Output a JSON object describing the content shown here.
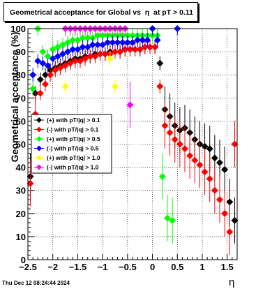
{
  "title": "Geometrical acceptance for Global vs  η  at pT > 0.11",
  "timestamp": "Thu Dec 12 08:24:44 2024",
  "chart_data": {
    "type": "scatter",
    "xlabel": "η",
    "ylabel": "Geometrical acceptance (%)",
    "xlim": [
      -2.5,
      1.7
    ],
    "ylim": [
      0,
      100
    ],
    "grid": true,
    "legend_position": "left-middle",
    "x_ticks": [
      -2.5,
      -2,
      -1.5,
      -1,
      -0.5,
      0,
      0.5,
      1,
      1.5
    ],
    "x_tick_labels": [
      "−2.5",
      "−2",
      "−1.5",
      "−1",
      "−0.5",
      "0",
      "0.5",
      "1",
      "1.5"
    ],
    "y_ticks": [
      0,
      10,
      20,
      30,
      40,
      50,
      60,
      70,
      80,
      90,
      100
    ],
    "y_tick_labels": [
      "0",
      "10",
      "20",
      "30",
      "40",
      "50",
      "60",
      "70",
      "80",
      "90",
      "100"
    ],
    "series": [
      {
        "name": "(+) with pT/|q| > 0.1",
        "color": "#000000",
        "x": [
          -2.45,
          -2.35,
          -2.25,
          -2.15,
          -2.05,
          -1.95,
          -1.85,
          -1.75,
          -1.65,
          -1.55,
          -1.45,
          -1.35,
          -1.25,
          -1.15,
          -1.05,
          -0.95,
          -0.85,
          -0.75,
          -0.65,
          -0.55,
          -0.45,
          -0.35,
          -0.25,
          -0.15,
          -0.05,
          0.05,
          0.15,
          0.25,
          0.35,
          0.45,
          0.55,
          0.65,
          0.75,
          0.85,
          0.95,
          1.05,
          1.15,
          1.25,
          1.35,
          1.45,
          1.55,
          1.65
        ],
        "y": [
          36,
          72,
          78,
          80,
          82,
          83,
          84,
          85,
          86,
          87,
          87,
          88,
          88,
          89,
          89,
          89,
          90,
          90,
          90,
          91,
          91,
          91,
          91,
          92,
          92,
          92,
          85,
          65,
          62,
          58,
          56,
          57,
          55,
          52,
          50,
          49,
          48,
          44,
          42,
          39,
          25,
          17
        ]
      },
      {
        "name": "(-) with pT/|q| > 0.1",
        "color": "#ff0000",
        "x": [
          -2.45,
          -2.35,
          -2.25,
          -2.15,
          -2.05,
          -1.95,
          -1.85,
          -1.75,
          -1.65,
          -1.55,
          -1.45,
          -1.35,
          -1.25,
          -1.15,
          -1.05,
          -0.95,
          -0.85,
          -0.75,
          -0.65,
          -0.55,
          -0.45,
          -0.35,
          -0.25,
          -0.15,
          -0.05,
          0.05,
          0.15,
          0.25,
          0.35,
          0.45,
          0.55,
          0.65,
          0.75,
          0.85,
          0.95,
          1.05,
          1.15,
          1.25,
          1.35,
          1.45,
          1.55,
          1.65
        ],
        "y": [
          33,
          63,
          72,
          76,
          80,
          82,
          83,
          84,
          85,
          86,
          86,
          87,
          88,
          88,
          89,
          89,
          89,
          90,
          90,
          91,
          91,
          91,
          91,
          92,
          92,
          92,
          75,
          58,
          55,
          52,
          50,
          48,
          45,
          43,
          41,
          38,
          35,
          30,
          26,
          20,
          12,
          50
        ]
      },
      {
        "name": "(+) with pT/|q| > 0.5",
        "color": "#00ff00",
        "x": [
          -2.4,
          -2.3,
          -2.2,
          -2.1,
          -2.0,
          -1.9,
          -1.8,
          -1.7,
          -1.6,
          -1.5,
          -1.4,
          -1.3,
          -1.2,
          -1.1,
          -1.0,
          -0.9,
          -0.8,
          -0.7,
          -0.6,
          -0.5,
          -0.4,
          -0.3,
          -0.2,
          -0.1,
          0.0,
          0.1,
          0.2,
          0.3,
          0.4
        ],
        "y": [
          74,
          100,
          90,
          88,
          91,
          92,
          93,
          94,
          95,
          95,
          96,
          96,
          96,
          97,
          97,
          97,
          97,
          97,
          97,
          97,
          97,
          97,
          97,
          97,
          97,
          97,
          36,
          18,
          17
        ]
      },
      {
        "name": "(-) with pT/|q| > 0.5",
        "color": "#0000ff",
        "x": [
          -2.4,
          -2.3,
          -2.2,
          -2.1,
          -2.0,
          -1.9,
          -1.8,
          -1.7,
          -1.6,
          -1.5,
          -1.4,
          -1.3,
          -1.2,
          -1.1,
          -1.0,
          -0.9,
          -0.8,
          -0.7,
          -0.6,
          -0.5,
          -0.4,
          -0.3,
          -0.2,
          -0.1,
          0.0,
          0.1,
          0.5
        ],
        "y": [
          80,
          86,
          85,
          84,
          87,
          88,
          89,
          90,
          91,
          91,
          92,
          92,
          93,
          93,
          93,
          94,
          94,
          94,
          94,
          94,
          94,
          95,
          95,
          95,
          100,
          95,
          100
        ]
      },
      {
        "name": "(+) with pT/|q| > 1.0",
        "color": "#ffff00",
        "x": [
          -1.75,
          -1.65,
          -1.55,
          -1.45,
          -1.35,
          -1.25,
          -1.15,
          -1.05,
          -0.95,
          -0.85,
          -0.75,
          -0.65,
          -0.55
        ],
        "y": [
          75,
          100,
          100,
          100,
          100,
          100,
          100,
          100,
          100,
          87,
          75,
          100,
          100
        ]
      },
      {
        "name": "(-) with pT/|q| > 1.0",
        "color": "#ff00ff",
        "x": [
          -1.75,
          -1.65,
          -1.55,
          -1.45,
          -1.35,
          -1.25,
          -1.15,
          -1.05,
          -0.95,
          -0.85,
          -0.75,
          -0.65,
          -0.55,
          -0.45
        ],
        "y": [
          100,
          100,
          100,
          100,
          100,
          100,
          100,
          100,
          100,
          100,
          100,
          100,
          100,
          67
        ]
      }
    ]
  }
}
